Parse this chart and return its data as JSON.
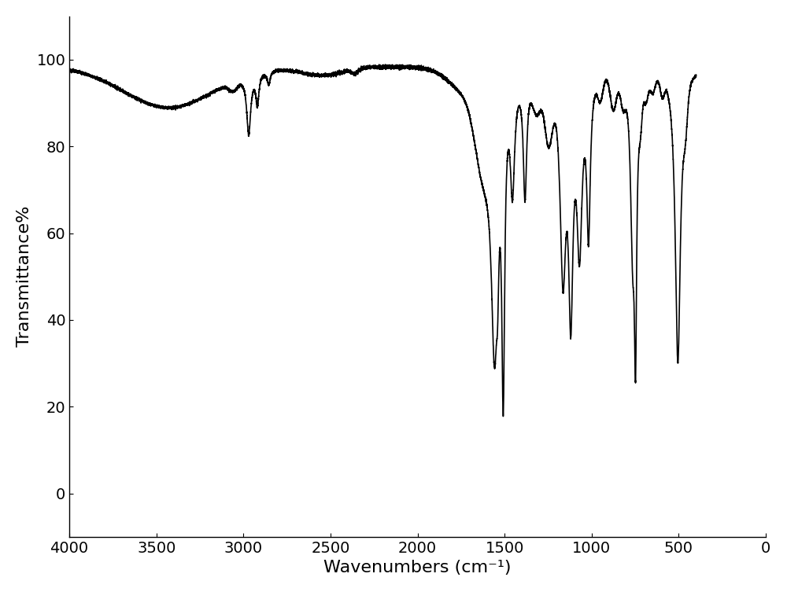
{
  "xlabel": "Wavenumbers (cm⁻¹)",
  "ylabel": "Transmittance%",
  "xlim": [
    4000,
    0
  ],
  "ylim": [
    -10,
    110
  ],
  "xticks": [
    4000,
    3500,
    3000,
    2500,
    2000,
    1500,
    1000,
    500,
    0
  ],
  "yticks": [
    0,
    20,
    40,
    60,
    80,
    100
  ],
  "line_color": "#000000",
  "line_width": 1.2,
  "background_color": "#ffffff",
  "xlabel_fontsize": 16,
  "ylabel_fontsize": 16,
  "tick_fontsize": 14
}
